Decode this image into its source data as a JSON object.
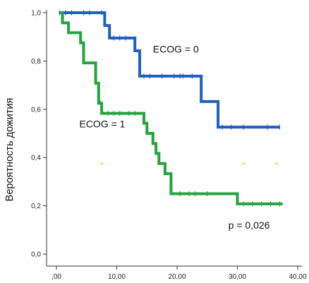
{
  "chart_data": {
    "type": "line",
    "title": "",
    "xlabel": "",
    "ylabel": "Вероятность дожития",
    "xlim": [
      0,
      40
    ],
    "ylim": [
      0,
      1.0
    ],
    "x_ticks": [
      0,
      10,
      20,
      30,
      40
    ],
    "x_tick_labels": [
      ",00",
      "10,00",
      "20,00",
      "30,00",
      "40,00"
    ],
    "y_ticks": [
      0,
      0.2,
      0.4,
      0.6,
      0.8,
      1.0
    ],
    "y_tick_labels": [
      "0,0",
      "0,2",
      "0,4",
      "0,6",
      "0,8",
      "1,0"
    ],
    "grid": false,
    "series": [
      {
        "name": "ECOG = 0",
        "color": "#1f5fbf",
        "step_x": [
          0.5,
          8.0,
          8.8,
          13.0,
          13.8,
          24.0,
          26.8,
          37.0
        ],
        "step_y": [
          1.0,
          0.947,
          0.895,
          0.842,
          0.737,
          0.632,
          0.526,
          0.526
        ],
        "censor_x": [
          0.5,
          1.5,
          2.5,
          4.5,
          5.5,
          7.5,
          9.5,
          10.5,
          11.5,
          14.5,
          15.5,
          17.5,
          19.5,
          20.5,
          21.0,
          22.5,
          27.5,
          29.0,
          31.0,
          35.0,
          37.0
        ]
      },
      {
        "name": "ECOG = 1",
        "color": "#25a33f",
        "step_x": [
          0.5,
          1.0,
          2.0,
          4.0,
          4.5,
          6.5,
          7.0,
          7.5,
          14.5,
          15.0,
          16.0,
          16.5,
          17.0,
          18.0,
          19.0,
          30.0,
          37.5
        ],
        "step_y": [
          1.0,
          0.958,
          0.917,
          0.875,
          0.792,
          0.708,
          0.625,
          0.583,
          0.542,
          0.5,
          0.458,
          0.417,
          0.375,
          0.333,
          0.25,
          0.208,
          0.208
        ],
        "censor_x": [
          7.3,
          8.5,
          9.5,
          10.5,
          12.0,
          13.0,
          20.5,
          22.0,
          23.0,
          25.0,
          31.0,
          32.5,
          34.0,
          35.5,
          37.0
        ]
      }
    ],
    "stray_marks": [
      {
        "x": 7.5,
        "y": 0.375
      },
      {
        "x": 31.0,
        "y": 0.375
      },
      {
        "x": 36.5,
        "y": 0.375
      }
    ],
    "annotations": [
      {
        "text": "ECOG = 0",
        "x": 16.0,
        "y": 0.835
      },
      {
        "text": "ECOG = 1",
        "x": 3.8,
        "y": 0.525
      },
      {
        "text": "p = 0,026",
        "x": 28.5,
        "y": 0.105
      }
    ]
  }
}
